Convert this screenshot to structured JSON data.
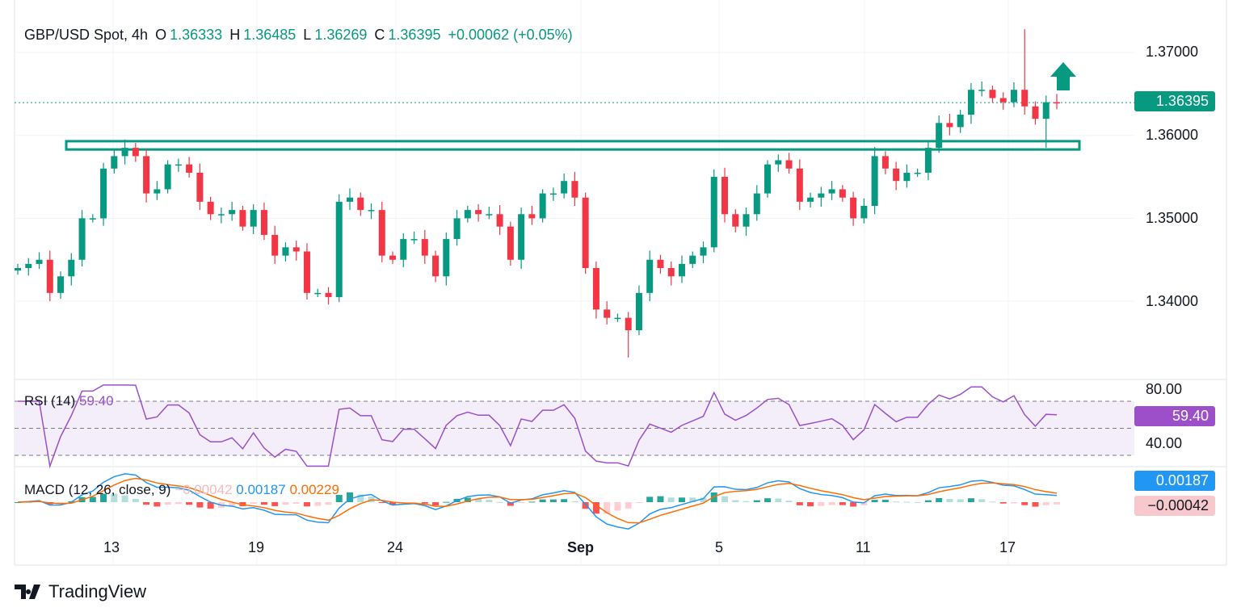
{
  "header": {
    "symbol": "GBP/USD Spot, 4h",
    "o_label": "O",
    "o": "1.36333",
    "h_label": "H",
    "h": "1.36485",
    "l_label": "L",
    "l": "1.36269",
    "c_label": "C",
    "c": "1.36395",
    "change": "+0.00062 (+0.05%)"
  },
  "colors": {
    "up": "#089981",
    "down": "#f23645",
    "rsi": "#9c4fc9",
    "macd": "#2196f3",
    "signal": "#ff6d00"
  },
  "chart_data": {
    "type": "candlestick",
    "title": "GBP/USD Spot, 4h",
    "y_ticks": [
      "1.37000",
      "1.36000",
      "1.35000",
      "1.34000"
    ],
    "y_tick_values": [
      1.37,
      1.36,
      1.35,
      1.34
    ],
    "ylim": [
      1.3325,
      1.3735
    ],
    "x_ticks": [
      "13",
      "19",
      "24",
      "Sep",
      "5",
      "11",
      "17"
    ],
    "last_price": "1.36395",
    "resistance_zone": [
      1.3583,
      1.3593
    ],
    "closes": [
      1.344,
      1.3445,
      1.345,
      1.341,
      1.343,
      1.345,
      1.35,
      1.35,
      1.356,
      1.3575,
      1.3585,
      1.3575,
      1.353,
      1.3535,
      1.3565,
      1.3565,
      1.3555,
      1.352,
      1.3505,
      1.3505,
      1.351,
      1.349,
      1.351,
      1.348,
      1.3455,
      1.3465,
      1.346,
      1.341,
      1.341,
      1.3405,
      1.352,
      1.3525,
      1.351,
      1.351,
      1.3455,
      1.345,
      1.3475,
      1.3475,
      1.3455,
      1.343,
      1.3475,
      1.35,
      1.351,
      1.3505,
      1.3505,
      1.349,
      1.345,
      1.3505,
      1.35,
      1.353,
      1.353,
      1.3545,
      1.3525,
      1.344,
      1.339,
      1.338,
      1.338,
      1.3365,
      1.341,
      1.345,
      1.344,
      1.343,
      1.3445,
      1.3455,
      1.3465,
      1.355,
      1.3505,
      1.349,
      1.3505,
      1.353,
      1.3565,
      1.357,
      1.356,
      1.352,
      1.3525,
      1.353,
      1.3535,
      1.3525,
      1.35,
      1.3515,
      1.3575,
      1.356,
      1.3545,
      1.3555,
      1.3555,
      1.3585,
      1.3615,
      1.361,
      1.3625,
      1.3655,
      1.3655,
      1.3645,
      1.364,
      1.3655,
      1.3635,
      1.362,
      1.364,
      1.36395
    ],
    "extremes": [
      {
        "index": 94,
        "high": 1.3728
      },
      {
        "index": 96,
        "low": 1.3585
      },
      {
        "index": 57,
        "low": 1.3332
      },
      {
        "index": 10,
        "high": 1.3595
      }
    ],
    "rsi": {
      "title": "RSI (14)",
      "value": "59.40",
      "ticks": [
        "80.00",
        "40.00"
      ],
      "levels": [
        70,
        50,
        30
      ]
    },
    "macd": {
      "title": "MACD (12, 26, close, 9)",
      "histogram": "−0.00042",
      "macd": "0.00187",
      "signal": "0.00229",
      "tag_macd": "0.00187",
      "tag_hist": "−0.00042"
    }
  },
  "footer": {
    "brand": "TradingView"
  }
}
